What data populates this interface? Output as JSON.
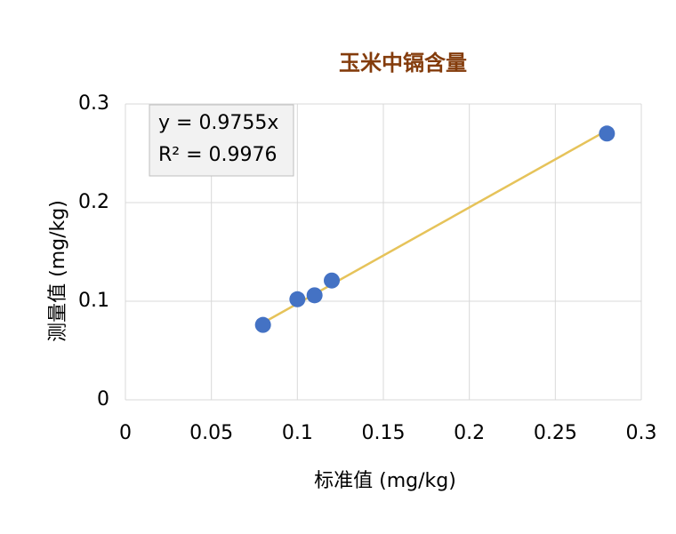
{
  "chart_data": {
    "type": "scatter",
    "title": "玉米中镉含量",
    "x_label": "标准值 (mg/kg)",
    "y_label": "测量值 (mg/kg)",
    "series": [
      {
        "name": "测量值",
        "color": "#4472c4",
        "x": [
          0.08,
          0.1,
          0.11,
          0.12,
          0.28
        ],
        "values": [
          0.076,
          0.102,
          0.106,
          0.121,
          0.27
        ]
      }
    ],
    "trendline": {
      "slope": 0.9755,
      "color": "#e6c35a"
    },
    "annotations": [
      "y = 0.9755x",
      "R² = 0.9976"
    ],
    "xlim": [
      0,
      0.3
    ],
    "xticks": [
      0,
      0.05,
      0.1,
      0.15,
      0.2,
      0.25,
      0.3
    ],
    "ylim": [
      0,
      0.3
    ],
    "yticks": [
      0,
      0.1,
      0.2,
      0.3
    ],
    "grid": true
  }
}
